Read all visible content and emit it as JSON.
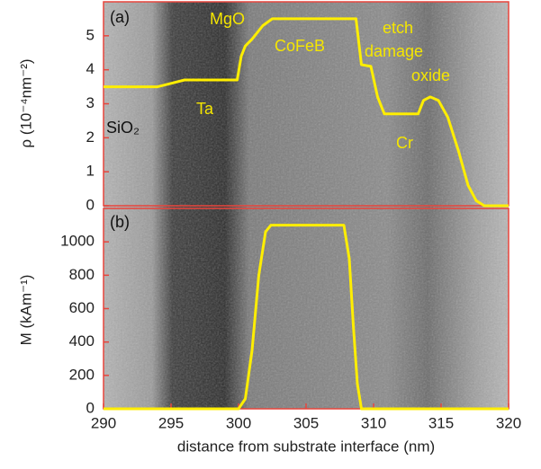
{
  "chart_data": [
    {
      "type": "line",
      "annotations": [
        "(a)",
        "MgO",
        "CoFeB",
        "etch",
        "damage",
        "oxide",
        "Ta",
        "SiO₂",
        "Cr"
      ],
      "ylabel": "ρ (10⁻⁴nm⁻²)",
      "x": [
        290,
        294,
        295,
        296,
        299.9,
        300.2,
        300.5,
        301,
        301.8,
        302.5,
        308.7,
        309.1,
        309.8,
        310.3,
        310.8,
        313.3,
        313.7,
        314.2,
        314.8,
        315.5,
        316.3,
        317,
        317.6,
        318.2,
        320
      ],
      "values": [
        3.5,
        3.5,
        3.6,
        3.7,
        3.7,
        4.4,
        4.7,
        4.9,
        5.3,
        5.5,
        5.5,
        4.15,
        4.1,
        3.2,
        2.7,
        2.7,
        3.1,
        3.2,
        3.1,
        2.6,
        1.6,
        0.6,
        0.15,
        0,
        0
      ],
      "color": "#ffee00",
      "axis_color": "#e8453c",
      "xlim": [
        290,
        320
      ],
      "ylim": [
        0,
        6
      ],
      "yticks": [
        0,
        1,
        2,
        3,
        4,
        5
      ]
    },
    {
      "type": "line",
      "annotations": [
        "(b)"
      ],
      "ylabel": "M (kAm⁻¹)",
      "xlabel": "distance from substrate interface (nm)",
      "x": [
        290,
        300,
        300.5,
        301,
        301.5,
        302,
        302.4,
        307.8,
        308.2,
        308.5,
        308.8,
        309.1,
        320
      ],
      "values": [
        0,
        0,
        60,
        350,
        800,
        1060,
        1100,
        1100,
        900,
        500,
        150,
        0,
        0
      ],
      "color": "#ffee00",
      "axis_color": "#e8453c",
      "xlim": [
        290,
        320
      ],
      "xticks": [
        290,
        295,
        300,
        305,
        310,
        315,
        320
      ],
      "ylim": [
        0,
        1200
      ],
      "yticks": [
        0,
        200,
        400,
        600,
        800,
        1000
      ]
    }
  ]
}
